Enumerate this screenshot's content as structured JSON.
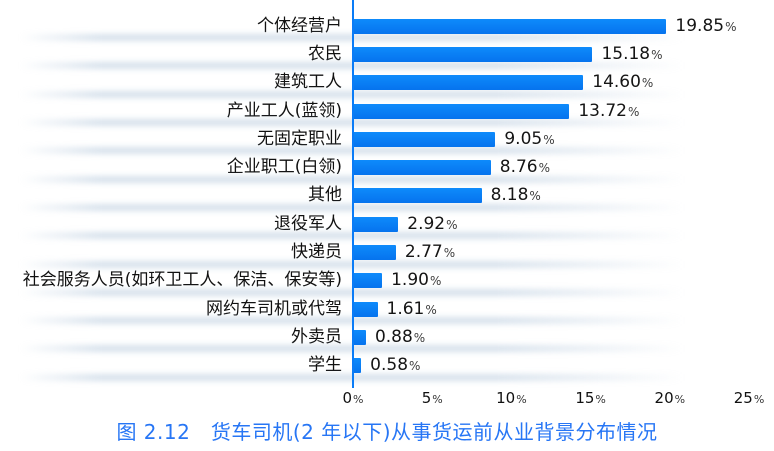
{
  "chart_data": {
    "type": "bar",
    "orientation": "horizontal",
    "title": "图 2.12　货车司机(2 年以下)从事货运前从业背景分布情况",
    "categories": [
      "个体经营户",
      "农民",
      "建筑工人",
      "产业工人(蓝领)",
      "无固定职业",
      "企业职工(白领)",
      "其他",
      "退役军人",
      "快递员",
      "社会服务人员(如环卫工人、保洁、保安等)",
      "网约车司机或代驾",
      "外卖员",
      "学生"
    ],
    "values": [
      19.85,
      15.18,
      14.6,
      13.72,
      9.05,
      8.76,
      8.18,
      2.92,
      2.77,
      1.9,
      1.61,
      0.88,
      0.58
    ],
    "value_labels": [
      "19.85",
      "15.18",
      "14.60",
      "13.72",
      "9.05",
      "8.76",
      "8.18",
      "2.92",
      "2.77",
      "1.90",
      "1.61",
      "0.88",
      "0.58"
    ],
    "value_suffix": "%",
    "xlabel": "",
    "ylabel": "",
    "xlim": [
      0,
      25
    ],
    "x_tick_values": [
      0,
      5,
      10,
      15,
      20,
      25
    ],
    "x_tick_labels": [
      "0",
      "5",
      "10",
      "15",
      "20",
      "25"
    ],
    "tick_suffix": "%",
    "grid": false,
    "legend": "none",
    "bar_color": "#0a7cf7",
    "axis_color": "#0a7cf7",
    "title_color": "#2776f5"
  }
}
